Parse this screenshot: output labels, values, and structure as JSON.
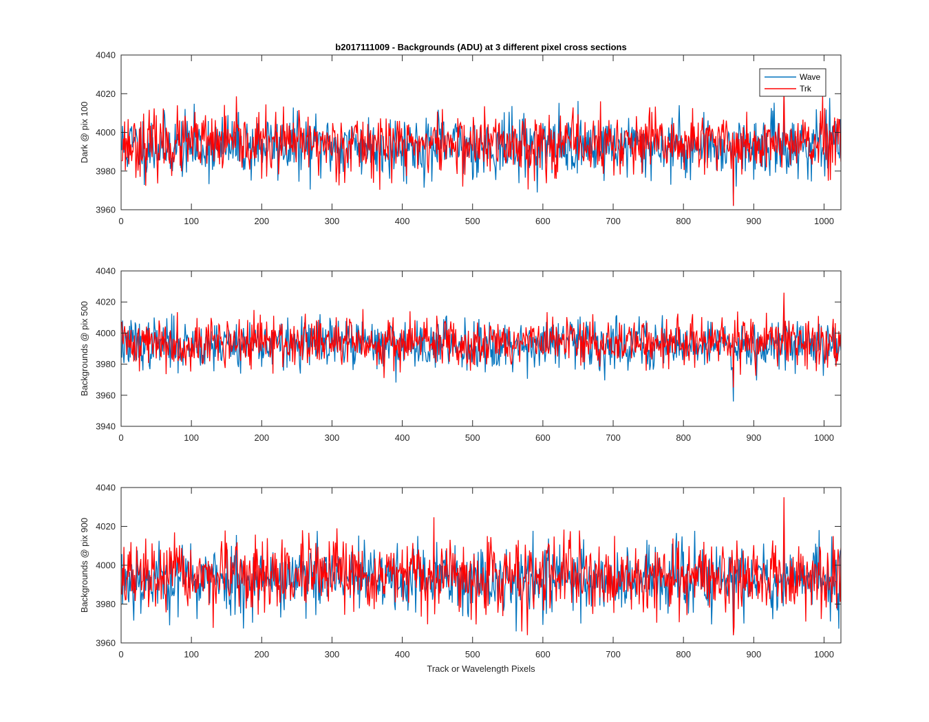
{
  "figure_title": "b2017111009 - Backgrounds (ADU) at 3 different pixel cross sections",
  "colors": {
    "wave": "#0072BD",
    "trk": "#FF0000",
    "axis": "#262626"
  },
  "legend": {
    "placement": "top-right",
    "entries": [
      "Wave",
      "Trk"
    ]
  },
  "chart_data": [
    {
      "type": "line",
      "title": "b2017111009 - Backgrounds (ADU) at 3 different pixel cross sections",
      "xlabel": "",
      "ylabel": "Dark @ pix 100",
      "xlim": [
        0,
        1024
      ],
      "ylim": [
        3960,
        4040
      ],
      "xticks": [
        0,
        100,
        200,
        300,
        400,
        500,
        600,
        700,
        800,
        900,
        1000
      ],
      "yticks": [
        3960,
        3980,
        4000,
        4020,
        4040
      ],
      "x": "1..1024 (pixel index)",
      "series": [
        {
          "name": "Wave",
          "color": "#0072BD",
          "mean": 3993,
          "std": 8,
          "min": 3962,
          "max": 4021,
          "seed": 11
        },
        {
          "name": "Trk",
          "color": "#FF0000",
          "mean": 3994,
          "std": 8,
          "min": 3962,
          "max": 4023,
          "seed": 23
        }
      ],
      "legend": true
    },
    {
      "type": "line",
      "title": "",
      "xlabel": "",
      "ylabel": "Backgrounds @ pix 500",
      "xlim": [
        0,
        1024
      ],
      "ylim": [
        3940,
        4040
      ],
      "xticks": [
        0,
        100,
        200,
        300,
        400,
        500,
        600,
        700,
        800,
        900,
        1000
      ],
      "yticks": [
        3940,
        3960,
        3980,
        4000,
        4020,
        4040
      ],
      "x": "1..1024 (pixel index)",
      "series": [
        {
          "name": "Wave",
          "color": "#0072BD",
          "mean": 3993,
          "std": 8,
          "min": 3956,
          "max": 4022,
          "seed": 37
        },
        {
          "name": "Trk",
          "color": "#FF0000",
          "mean": 3994,
          "std": 8,
          "min": 3965,
          "max": 4026,
          "seed": 41
        }
      ],
      "legend": false
    },
    {
      "type": "line",
      "title": "",
      "xlabel": "Track or Wavelength Pixels",
      "ylabel": "Backgrounds @ pix 900",
      "xlim": [
        0,
        1024
      ],
      "ylim": [
        3960,
        4040
      ],
      "xticks": [
        0,
        100,
        200,
        300,
        400,
        500,
        600,
        700,
        800,
        900,
        1000
      ],
      "yticks": [
        3960,
        3980,
        4000,
        4020,
        4040
      ],
      "x": "1..1024 (pixel index)",
      "series": [
        {
          "name": "Wave",
          "color": "#0072BD",
          "mean": 3993,
          "std": 9,
          "min": 3964,
          "max": 4027,
          "seed": 53
        },
        {
          "name": "Trk",
          "color": "#FF0000",
          "mean": 3994,
          "std": 9,
          "min": 3964,
          "max": 4035,
          "seed": 67
        }
      ],
      "legend": false
    }
  ]
}
